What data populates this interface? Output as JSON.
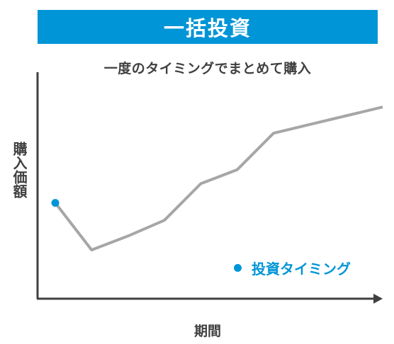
{
  "header": {
    "title": "一括投資"
  },
  "colors": {
    "banner": "#0095d6",
    "line": "#a6a6a6",
    "axis": "#404040",
    "marker": "#0095d6"
  },
  "chart_data": {
    "type": "line",
    "title": "一度のタイミングでまとめて購入",
    "xlabel": "期間",
    "ylabel": "購入価額",
    "x": [
      0,
      1,
      2,
      3,
      4,
      5,
      6,
      7,
      8,
      9
    ],
    "y": [
      55,
      28,
      36,
      45,
      66,
      74,
      95,
      100,
      105,
      110
    ],
    "ylim": [
      0,
      130
    ],
    "xlim": [
      0,
      9
    ],
    "investment_points": [
      0
    ],
    "legend": {
      "label": "投資タイミング",
      "placement": "bottom-right"
    },
    "grid": false
  }
}
